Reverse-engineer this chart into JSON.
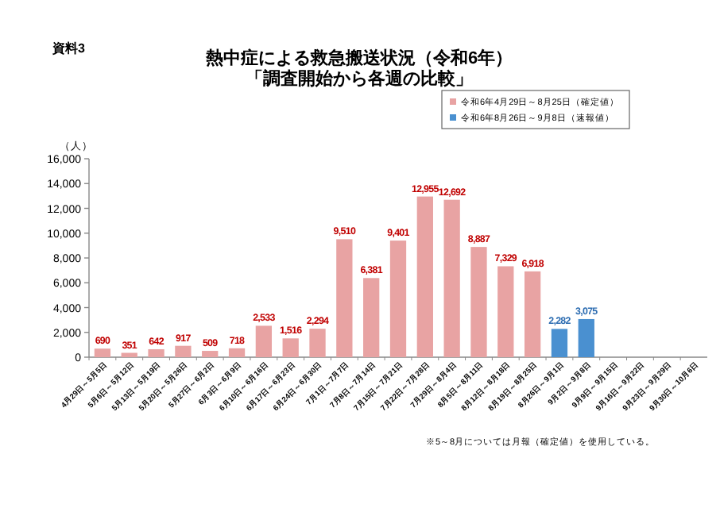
{
  "chart_data": {
    "type": "bar",
    "title": "熱中症による救急搬送状況（令和6年）",
    "subtitle": "「調査開始から各週の比較」",
    "ylabel": "（人）",
    "annotations": [
      "資料3",
      "※5～8月については月報（確定値）を使用している。"
    ],
    "categories": [
      "4月29日～5月5日",
      "5月6日～5月12日",
      "5月13日～5月19日",
      "5月20日～5月26日",
      "5月27日～6月2日",
      "6月3日～6月9日",
      "6月10日～6月16日",
      "6月17日～6月23日",
      "6月24日～6月30日",
      "7月1日～7月7日",
      "7月8日～7月14日",
      "7月15日～7月21日",
      "7月22日～7月28日",
      "7月29日～8月4日",
      "8月5日～8月11日",
      "8月12日～8月18日",
      "8月19日～8月25日",
      "8月26日～9月1日",
      "9月2日～9月8日",
      "9月9日～9月15日",
      "9月16日～9月22日",
      "9月23日～9月29日",
      "9月30日～10月6日"
    ],
    "series": [
      {
        "name": "令和6年4月29日～8月25日（確定値）",
        "color": "#e8a3a3",
        "values": [
          690,
          351,
          642,
          917,
          509,
          718,
          2533,
          1516,
          2294,
          9510,
          6381,
          9401,
          12955,
          12692,
          8887,
          7329,
          6918,
          null,
          null,
          null,
          null,
          null,
          null
        ],
        "value_labels": [
          "690",
          "351",
          "642",
          "917",
          "509",
          "718",
          "2,533",
          "1,516",
          "2,294",
          "9,510",
          "6,381",
          "9,401",
          "12,955",
          "12,692",
          "8,887",
          "7,329",
          "6,918",
          null,
          null,
          null,
          null,
          null,
          null
        ]
      },
      {
        "name": "令和6年8月26日～9月8日（速報値）",
        "color": "#4a90d0",
        "values": [
          null,
          null,
          null,
          null,
          null,
          null,
          null,
          null,
          null,
          null,
          null,
          null,
          null,
          null,
          null,
          null,
          null,
          2282,
          3075,
          null,
          null,
          null,
          null
        ],
        "value_labels": [
          null,
          null,
          null,
          null,
          null,
          null,
          null,
          null,
          null,
          null,
          null,
          null,
          null,
          null,
          null,
          null,
          null,
          "2,282",
          "3,075",
          null,
          null,
          null,
          null
        ]
      }
    ],
    "ylim": [
      0,
      16000
    ],
    "yticks": [
      0,
      {
        "value": 2000,
        "label": "2,000"
      },
      {
        "value": 4000,
        "label": "4,000"
      },
      {
        "value": 6000,
        "label": "6,000"
      },
      {
        "value": 8000,
        "label": "8,000"
      },
      {
        "value": 10000,
        "label": "10,000"
      },
      {
        "value": 12000,
        "label": "12,000"
      },
      {
        "value": 14000,
        "label": "14,000"
      },
      {
        "value": 16000,
        "label": "16,000"
      }
    ],
    "legend": "top right"
  }
}
